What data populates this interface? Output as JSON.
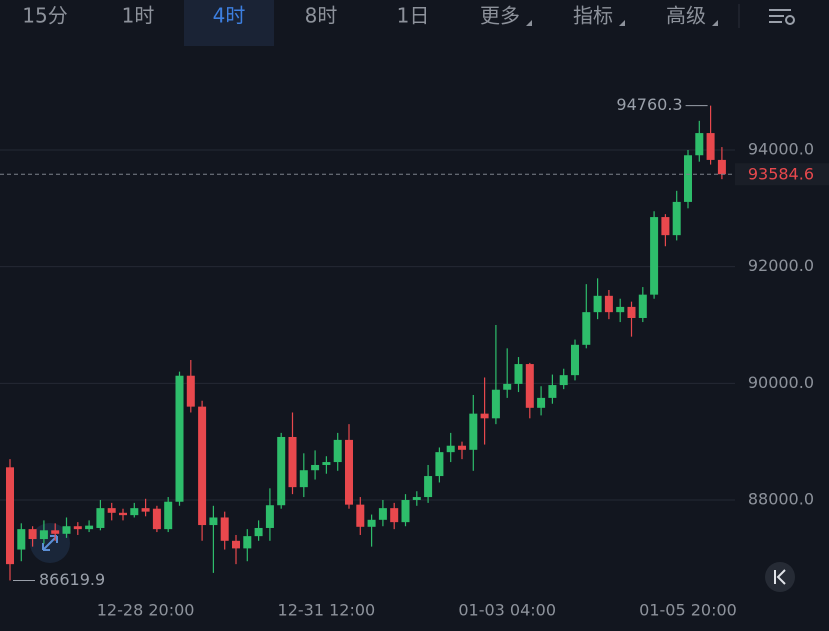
{
  "toolbar": {
    "tabs": [
      "15分",
      "1时",
      "4时",
      "8时",
      "1日",
      "更多",
      "指标",
      "高级"
    ],
    "active_tab": 2
  },
  "chart_data": {
    "type": "candlestick",
    "categories": [
      null,
      null,
      null,
      null,
      null,
      null,
      null,
      null,
      null,
      null,
      null,
      null,
      "12-28 20:00",
      null,
      null,
      null,
      null,
      null,
      null,
      null,
      null,
      null,
      null,
      null,
      null,
      null,
      null,
      null,
      "12-31 12:00",
      null,
      null,
      null,
      null,
      null,
      null,
      null,
      null,
      null,
      null,
      null,
      null,
      null,
      null,
      null,
      "01-03 04:00",
      null,
      null,
      null,
      null,
      null,
      null,
      null,
      null,
      null,
      null,
      null,
      null,
      null,
      null,
      null,
      "01-05 20:00",
      null,
      null,
      null
    ],
    "open": [
      88560,
      87150,
      87500,
      87330,
      87480,
      87420,
      87550,
      87500,
      87520,
      87860,
      87780,
      87740,
      87860,
      87850,
      87500,
      87970,
      90130,
      89600,
      87570,
      87700,
      87300,
      87170,
      87380,
      87520,
      87910,
      89080,
      88220,
      88510,
      88600,
      88650,
      89030,
      87920,
      87540,
      87660,
      87860,
      87620,
      88000,
      88050,
      88410,
      88820,
      88930,
      88860,
      89480,
      89400,
      89890,
      89990,
      90330,
      89580,
      89750,
      89970,
      90140,
      90660,
      91220,
      91500,
      91220,
      91310,
      91120,
      91520,
      92850,
      92540,
      93110,
      93910,
      94290,
      93830
    ],
    "high": [
      88700,
      87600,
      87550,
      87650,
      87600,
      87700,
      87620,
      87650,
      88000,
      87950,
      87850,
      87950,
      88020,
      87900,
      88050,
      90200,
      90400,
      89700,
      87900,
      87800,
      87400,
      87500,
      87650,
      88200,
      89150,
      89500,
      88800,
      88850,
      88750,
      89150,
      89300,
      88050,
      87750,
      88000,
      87950,
      88100,
      88150,
      88600,
      88900,
      89150,
      89000,
      89800,
      90100,
      91000,
      90600,
      90450,
      90350,
      89950,
      90150,
      90250,
      90750,
      91700,
      91800,
      91600,
      91450,
      91400,
      91650,
      92950,
      92900,
      93300,
      94000,
      94500,
      94760.3,
      94050
    ],
    "low": [
      86619.9,
      86950,
      87200,
      87250,
      87300,
      87350,
      87400,
      87450,
      87480,
      87650,
      87650,
      87700,
      87720,
      87450,
      87450,
      87900,
      89500,
      87300,
      86750,
      87150,
      86900,
      86950,
      87300,
      87300,
      87850,
      88100,
      88050,
      88350,
      88450,
      88500,
      87850,
      87400,
      87200,
      87550,
      87500,
      87550,
      87900,
      87950,
      88300,
      88650,
      88700,
      88500,
      88950,
      89300,
      89750,
      89850,
      89400,
      89450,
      89650,
      89900,
      90050,
      90600,
      91100,
      91100,
      91050,
      90800,
      91050,
      91450,
      92350,
      92450,
      93000,
      93800,
      93750,
      93500
    ],
    "close": [
      86900,
      87500,
      87330,
      87480,
      87420,
      87550,
      87500,
      87560,
      87860,
      87780,
      87740,
      87860,
      87800,
      87500,
      87970,
      90130,
      89600,
      87570,
      87700,
      87300,
      87170,
      87380,
      87520,
      87910,
      89080,
      88220,
      88510,
      88600,
      88650,
      89030,
      87920,
      87540,
      87660,
      87860,
      87620,
      88000,
      88050,
      88410,
      88820,
      88930,
      88860,
      89480,
      89400,
      89890,
      89990,
      90330,
      89580,
      89750,
      89970,
      90140,
      90660,
      91220,
      91500,
      91220,
      91310,
      91120,
      91520,
      92850,
      92540,
      93110,
      93910,
      94290,
      93830,
      93584.6
    ],
    "up_color": "#2ebd6b",
    "down_color": "#e8484d",
    "ylim": [
      86400,
      95800
    ],
    "yticks": [
      {
        "value": 88000,
        "label": "88000.0"
      },
      {
        "value": 90000,
        "label": "90000.0"
      },
      {
        "value": 92000,
        "label": "92000.0"
      },
      {
        "value": 94000,
        "label": "94000.0"
      }
    ],
    "grid": true
  }
}
